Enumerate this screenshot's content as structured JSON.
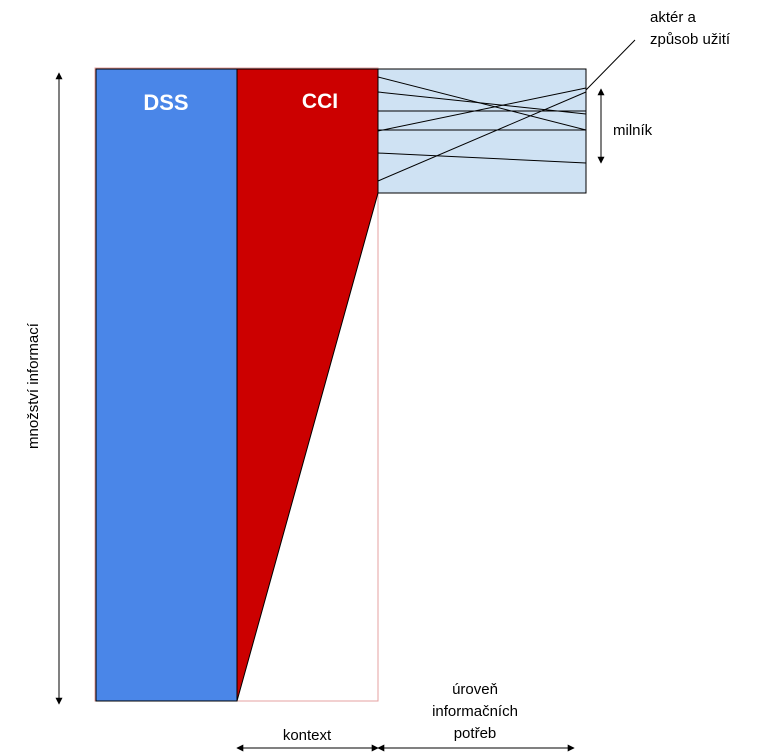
{
  "blocks": {
    "dss": {
      "label": "DSS",
      "color": "#4a86e8"
    },
    "cci": {
      "label": "CCI",
      "color": "#cc0000"
    },
    "detail": {
      "color": "#cfe2f3"
    }
  },
  "labels": {
    "amount": "množství informací",
    "actor_line1": "aktér a",
    "actor_line2": "způsob užití",
    "milestone": "milník",
    "context": "kontext",
    "level_line1": "úroveň",
    "level_line2": "informačních",
    "level_line3": "potřeb"
  }
}
